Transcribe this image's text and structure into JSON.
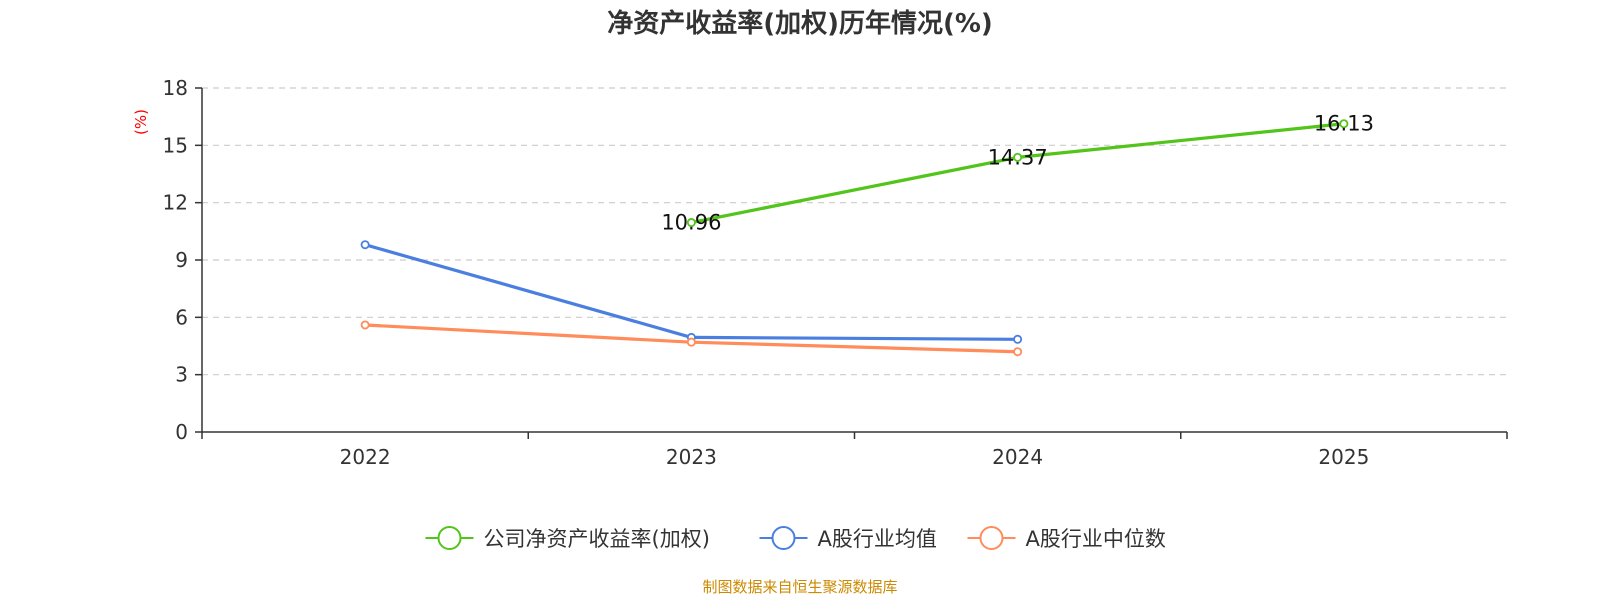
{
  "chart_data": {
    "type": "line",
    "title": "净资产收益率(加权)历年情况(%)",
    "ylabel": "(%)",
    "ylim": [
      0,
      18
    ],
    "yticks": [
      0,
      3,
      6,
      9,
      12,
      15,
      18
    ],
    "categories": [
      "2022",
      "2023",
      "2024",
      "2025"
    ],
    "grid": true,
    "legend_position": "bottom",
    "series": [
      {
        "name": "公司净资产收益率(加权)",
        "color": "#52c41a",
        "values": [
          null,
          10.96,
          14.37,
          16.13
        ],
        "data_labels": [
          "",
          "10.96",
          "14.37",
          "16.13"
        ]
      },
      {
        "name": "A股行业均值",
        "color": "#4a7fe0",
        "values": [
          9.8,
          4.95,
          4.85,
          null
        ]
      },
      {
        "name": "A股行业中位数",
        "color": "#ff8c5a",
        "values": [
          5.6,
          4.7,
          4.2,
          null
        ]
      }
    ]
  },
  "source": {
    "text": "制图数据来自恒生聚源数据库",
    "color": "#cc8a00"
  },
  "colors": {
    "axis": "#333333",
    "grid": "#cccccc",
    "unit": "#ff0000"
  }
}
